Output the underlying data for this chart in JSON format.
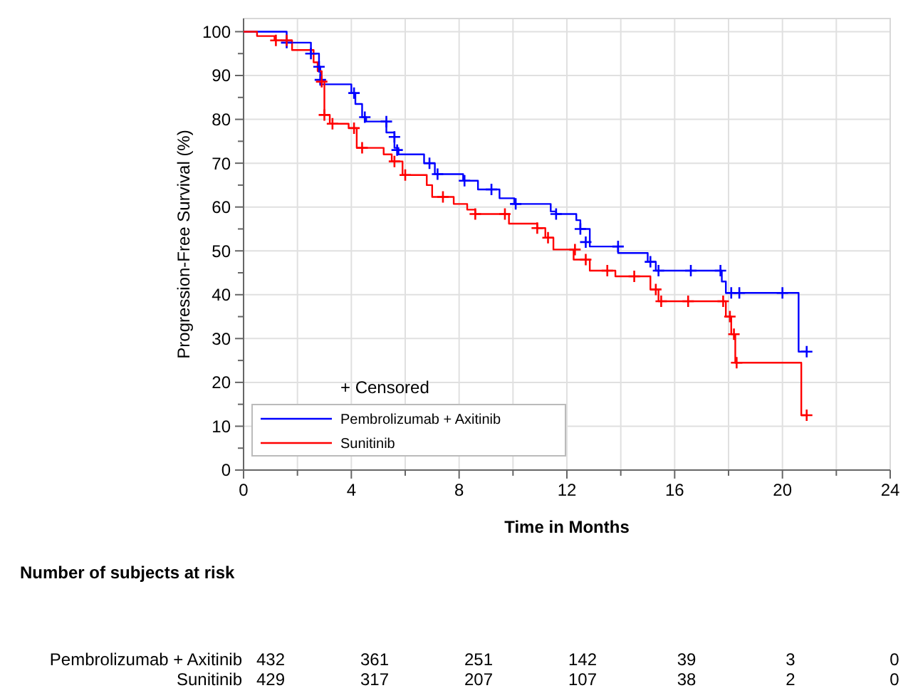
{
  "chart_data": {
    "type": "step",
    "ylabel": "Progression-Free Survival (%)",
    "xlabel": "Time in Months",
    "xlim": [
      0,
      24
    ],
    "xticks": [
      0,
      {
        "value": 2,
        "label": null
      },
      4,
      {
        "value": 6,
        "label": null
      },
      8,
      {
        "value": 10,
        "label": null
      },
      12,
      {
        "value": 14,
        "label": null
      },
      16,
      {
        "value": 18,
        "label": null
      },
      20,
      {
        "value": 22,
        "label": null
      },
      24
    ],
    "ylim": [
      0,
      103
    ],
    "yticks": [
      0,
      {
        "value": 5,
        "label": null
      },
      10,
      {
        "value": 15,
        "label": null
      },
      20,
      {
        "value": 25,
        "label": null
      },
      30,
      {
        "value": 35,
        "label": null
      },
      40,
      {
        "value": 45,
        "label": null
      },
      50,
      {
        "value": 55,
        "label": null
      },
      60,
      {
        "value": 65,
        "label": null
      },
      70,
      {
        "value": 75,
        "label": null
      },
      80,
      {
        "value": 85,
        "label": null
      },
      90,
      {
        "value": 95,
        "label": null
      },
      100
    ],
    "grid": true,
    "legend": "bottom left",
    "legend_title": "+ Censored",
    "line_style": "solid",
    "series": [
      {
        "name": "Pembrolizumab + Axitinib",
        "color": "#0000ff",
        "x": [
          0,
          1.6,
          2.5,
          2.8,
          2.85,
          4.0,
          4.15,
          4.4,
          4.55,
          5.3,
          5.6,
          5.75,
          6.7,
          7.1,
          8.15,
          8.7,
          9.5,
          10.05,
          11.4,
          11.6,
          12.35,
          12.5,
          12.85,
          13.9,
          15.0,
          15.3,
          17.75,
          17.9,
          20.6,
          20.9
        ],
        "values": [
          100,
          97.5,
          95,
          92,
          88,
          86,
          83.5,
          80.5,
          79.5,
          77,
          73.5,
          72,
          70,
          67.5,
          66,
          64,
          62,
          60.7,
          59,
          58.4,
          57,
          55,
          51,
          49.5,
          47.5,
          45.5,
          43,
          40.4,
          27,
          27
        ]
      },
      {
        "name": "Sunitinib",
        "color": "#ff0000",
        "x": [
          0,
          0.5,
          1.15,
          1.8,
          2.6,
          2.75,
          2.9,
          3.0,
          3.2,
          3.9,
          4.2,
          5.2,
          5.5,
          5.9,
          6.8,
          7.0,
          7.8,
          8.3,
          8.6,
          9.85,
          10.9,
          11.2,
          11.5,
          12.25,
          12.85,
          13.8,
          15.1,
          15.4,
          17.9,
          18.1,
          18.25,
          20.7,
          20.9
        ],
        "values": [
          100,
          99,
          98,
          95.8,
          93,
          91,
          88.6,
          81,
          79,
          78,
          73.5,
          72,
          70.4,
          67.3,
          65,
          62.3,
          60.7,
          59.4,
          58.4,
          56.2,
          55.2,
          53,
          50.3,
          48,
          45.5,
          44.2,
          41.2,
          38.5,
          35,
          31,
          24.5,
          12.5,
          12.5
        ]
      },
      {
        "type": "scatter",
        "marker": "cross",
        "color": "#0000ff",
        "x": [
          1.6,
          2.5,
          2.8,
          2.85,
          4.1,
          4.5,
          5.3,
          5.6,
          5.7,
          6.9,
          7.2,
          8.2,
          9.2,
          10.1,
          11.6,
          12.5,
          12.7,
          13.9,
          15.1,
          15.4,
          16.6,
          17.7,
          18.1,
          18.4,
          20,
          20.9
        ],
        "values": [
          97.5,
          95,
          92,
          89,
          86,
          80.5,
          79.5,
          76,
          73,
          70,
          67.5,
          66,
          64,
          60.7,
          58.4,
          55,
          52,
          51,
          47.5,
          45.5,
          45.5,
          45.5,
          40.4,
          40.4,
          40.4,
          27
        ]
      },
      {
        "type": "scatter",
        "marker": "cross",
        "color": "#ff0000",
        "x": [
          1.2,
          1.6,
          2.9,
          3.0,
          3.3,
          4.1,
          4.4,
          5.6,
          6.0,
          7.4,
          8.6,
          9.7,
          10.9,
          11.3,
          12.3,
          12.7,
          13.5,
          14.5,
          15.3,
          15.5,
          16.5,
          17.8,
          18.05,
          18.2,
          18.3,
          20.9
        ],
        "values": [
          98,
          98,
          88.6,
          81,
          79,
          78,
          73.5,
          70.4,
          67.3,
          62.3,
          58.4,
          58.4,
          55.2,
          53,
          50.3,
          48,
          45.5,
          44.2,
          41.2,
          38.5,
          38.5,
          38.5,
          35,
          31,
          24.5,
          12.5
        ]
      }
    ],
    "annotations": [
      "Number of subjects at risk",
      "Pembrolizumab + Axitinib",
      "432",
      "361",
      "251",
      "142",
      "39",
      "3",
      "0",
      "Sunitinib",
      "429",
      "317",
      "207",
      "107",
      "38",
      "2",
      "0"
    ]
  }
}
